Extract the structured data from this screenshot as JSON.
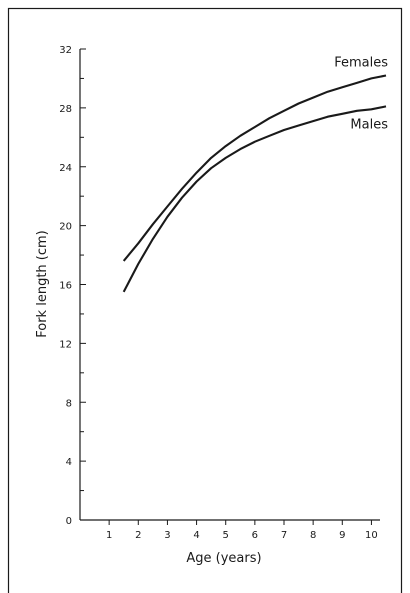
{
  "chart_data": {
    "type": "line",
    "title": "",
    "xlabel": "Age (years)",
    "ylabel": "Fork length (cm)",
    "xlim": [
      0,
      10.5
    ],
    "ylim": [
      0,
      32
    ],
    "x_ticks": [
      1,
      2,
      3,
      4,
      5,
      6,
      7,
      8,
      9,
      10
    ],
    "y_ticks": [
      0,
      4,
      8,
      12,
      16,
      20,
      24,
      28,
      32
    ],
    "grid": false,
    "legend": "labels-at-line-ends",
    "series": [
      {
        "name": "Females",
        "x": [
          1.5,
          2,
          2.5,
          3,
          3.5,
          4,
          4.5,
          5,
          5.5,
          6,
          6.5,
          7,
          7.5,
          8,
          8.5,
          9,
          9.5,
          10,
          10.5
        ],
        "y": [
          17.6,
          18.8,
          20.1,
          21.3,
          22.5,
          23.6,
          24.6,
          25.4,
          26.1,
          26.7,
          27.3,
          27.8,
          28.3,
          28.7,
          29.1,
          29.4,
          29.7,
          30.0,
          30.2
        ]
      },
      {
        "name": "Males",
        "x": [
          1.5,
          2,
          2.5,
          3,
          3.5,
          4,
          4.5,
          5,
          5.5,
          6,
          6.5,
          7,
          7.5,
          8,
          8.5,
          9,
          9.5,
          10,
          10.5
        ],
        "y": [
          15.5,
          17.4,
          19.1,
          20.6,
          21.9,
          23.0,
          23.9,
          24.6,
          25.2,
          25.7,
          26.1,
          26.5,
          26.8,
          27.1,
          27.4,
          27.6,
          27.8,
          27.9,
          28.1
        ]
      }
    ]
  }
}
